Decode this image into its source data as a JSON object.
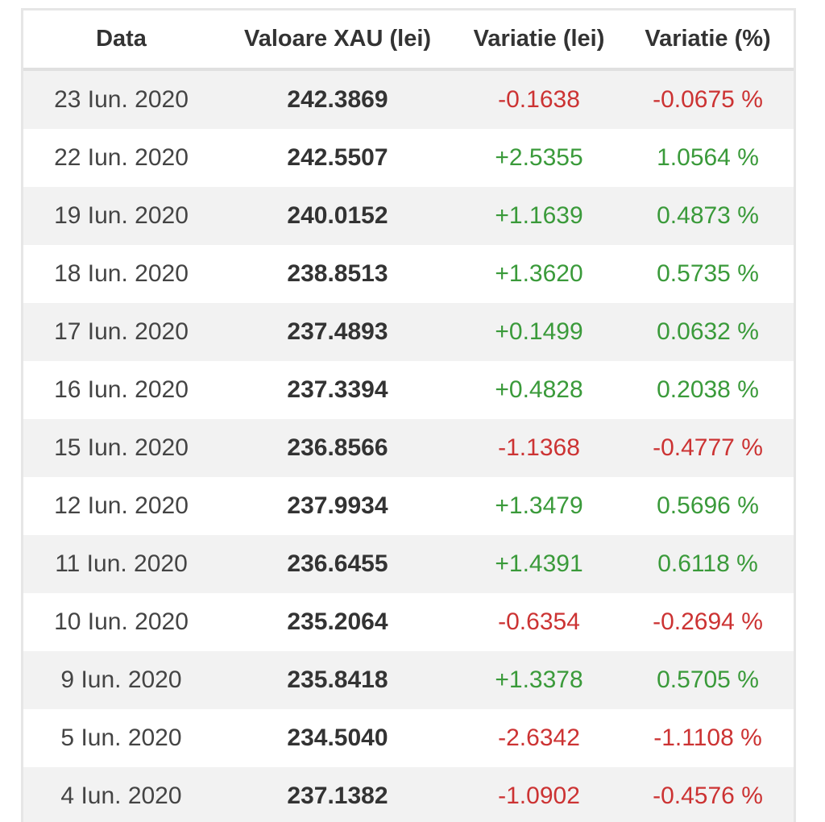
{
  "table": {
    "headers": [
      "Data",
      "Valoare XAU (lei)",
      "Variatie (lei)",
      "Variatie (%)"
    ],
    "rows": [
      {
        "date": "23 Iun. 2020",
        "value": "242.3869",
        "change": "-0.1638",
        "percent": "-0.0675 %",
        "trend": "neg"
      },
      {
        "date": "22 Iun. 2020",
        "value": "242.5507",
        "change": "+2.5355",
        "percent": "1.0564 %",
        "trend": "pos"
      },
      {
        "date": "19 Iun. 2020",
        "value": "240.0152",
        "change": "+1.1639",
        "percent": "0.4873 %",
        "trend": "pos"
      },
      {
        "date": "18 Iun. 2020",
        "value": "238.8513",
        "change": "+1.3620",
        "percent": "0.5735 %",
        "trend": "pos"
      },
      {
        "date": "17 Iun. 2020",
        "value": "237.4893",
        "change": "+0.1499",
        "percent": "0.0632 %",
        "trend": "pos"
      },
      {
        "date": "16 Iun. 2020",
        "value": "237.3394",
        "change": "+0.4828",
        "percent": "0.2038 %",
        "trend": "pos"
      },
      {
        "date": "15 Iun. 2020",
        "value": "236.8566",
        "change": "-1.1368",
        "percent": "-0.4777 %",
        "trend": "neg"
      },
      {
        "date": "12 Iun. 2020",
        "value": "237.9934",
        "change": "+1.3479",
        "percent": "0.5696 %",
        "trend": "pos"
      },
      {
        "date": "11 Iun. 2020",
        "value": "236.6455",
        "change": "+1.4391",
        "percent": "0.6118 %",
        "trend": "pos"
      },
      {
        "date": "10 Iun. 2020",
        "value": "235.2064",
        "change": "-0.6354",
        "percent": "-0.2694 %",
        "trend": "neg"
      },
      {
        "date": "9 Iun. 2020",
        "value": "235.8418",
        "change": "+1.3378",
        "percent": "0.5705 %",
        "trend": "pos"
      },
      {
        "date": "5 Iun. 2020",
        "value": "234.5040",
        "change": "-2.6342",
        "percent": "-1.1108 %",
        "trend": "neg"
      },
      {
        "date": "4 Iun. 2020",
        "value": "237.1382",
        "change": "-1.0902",
        "percent": "-0.4576 %",
        "trend": "neg"
      }
    ]
  },
  "colors": {
    "negative": "#cc3333",
    "positive": "#3a9a3a",
    "stripe": "#f2f2f2"
  }
}
